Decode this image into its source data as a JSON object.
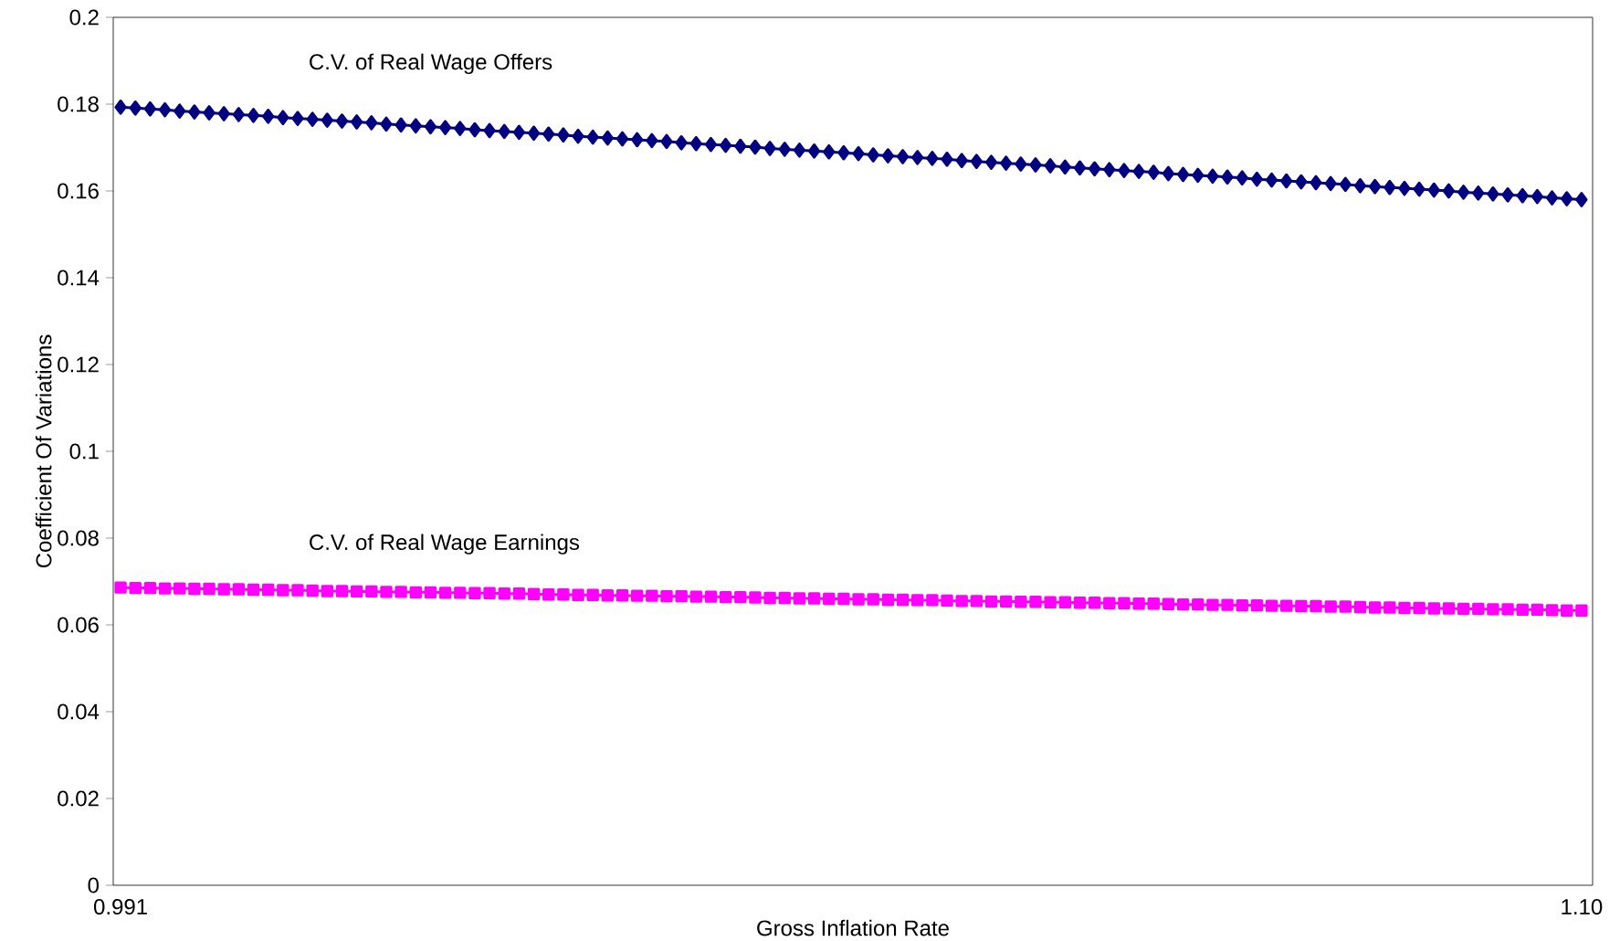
{
  "chart_data": {
    "type": "line",
    "xlabel": "Gross Inflation Rate",
    "ylabel": "Coefficient Of Variations",
    "categories": [
      "0.991",
      null,
      null,
      null,
      null,
      null,
      null,
      null,
      null,
      null,
      null,
      null,
      null,
      null,
      null,
      null,
      null,
      null,
      null,
      null,
      null,
      null,
      null,
      null,
      null,
      null,
      null,
      null,
      null,
      null,
      null,
      null,
      null,
      null,
      null,
      null,
      null,
      null,
      null,
      null,
      null,
      null,
      null,
      null,
      null,
      null,
      null,
      null,
      null,
      null,
      null,
      null,
      null,
      null,
      null,
      null,
      null,
      null,
      null,
      null,
      null,
      null,
      null,
      null,
      null,
      null,
      null,
      null,
      null,
      null,
      null,
      null,
      null,
      null,
      null,
      null,
      null,
      null,
      null,
      null,
      null,
      null,
      null,
      null,
      null,
      null,
      null,
      null,
      null,
      null,
      null,
      null,
      null,
      null,
      null,
      null,
      null,
      null,
      null,
      "1.10"
    ],
    "ylim": [
      0,
      0.2
    ],
    "yticks": [
      0,
      0.02,
      0.04,
      0.06,
      0.08,
      0.1,
      0.12,
      0.14,
      0.16,
      0.18,
      0.2
    ],
    "grid": false,
    "series": [
      {
        "name": "C.V. of Real Wage Offers",
        "color": "#000080",
        "marker": "diamond",
        "values": [
          0.1793,
          0.1791,
          0.1789,
          0.1787,
          0.1784,
          0.1782,
          0.178,
          0.1778,
          0.1776,
          0.1774,
          0.1772,
          0.1769,
          0.1767,
          0.1765,
          0.1763,
          0.1761,
          0.1759,
          0.1757,
          0.1754,
          0.1752,
          0.175,
          0.1748,
          0.1746,
          0.1744,
          0.1741,
          0.1739,
          0.1737,
          0.1735,
          0.1733,
          0.1731,
          0.1729,
          0.1726,
          0.1724,
          0.1722,
          0.172,
          0.1718,
          0.1716,
          0.1714,
          0.1711,
          0.1709,
          0.1707,
          0.1705,
          0.1703,
          0.1701,
          0.1698,
          0.1696,
          0.1694,
          0.1692,
          0.169,
          0.1688,
          0.1686,
          0.1683,
          0.1681,
          0.1679,
          0.1677,
          0.1675,
          0.1673,
          0.167,
          0.1668,
          0.1666,
          0.1664,
          0.1662,
          0.166,
          0.1658,
          0.1655,
          0.1653,
          0.1651,
          0.1649,
          0.1647,
          0.1645,
          0.1643,
          0.164,
          0.1638,
          0.1636,
          0.1634,
          0.1632,
          0.163,
          0.1627,
          0.1625,
          0.1623,
          0.1621,
          0.1619,
          0.1617,
          0.1615,
          0.1612,
          0.161,
          0.1608,
          0.1606,
          0.1604,
          0.1602,
          0.16,
          0.1597,
          0.1595,
          0.1593,
          0.1591,
          0.1589,
          0.1587,
          0.1584,
          0.1582,
          0.158
        ]
      },
      {
        "name": "C.V. of Real Wage Earnings",
        "color": "#ff00ff",
        "marker": "square",
        "values": [
          0.0686,
          0.0685,
          0.0685,
          0.0684,
          0.0684,
          0.0683,
          0.0683,
          0.0682,
          0.0682,
          0.0681,
          0.0681,
          0.068,
          0.068,
          0.0679,
          0.0678,
          0.0678,
          0.0677,
          0.0677,
          0.0676,
          0.0676,
          0.0675,
          0.0675,
          0.0674,
          0.0674,
          0.0673,
          0.0673,
          0.0672,
          0.0672,
          0.0671,
          0.067,
          0.067,
          0.0669,
          0.0669,
          0.0668,
          0.0668,
          0.0667,
          0.0667,
          0.0666,
          0.0666,
          0.0665,
          0.0665,
          0.0664,
          0.0664,
          0.0663,
          0.0662,
          0.0662,
          0.0661,
          0.0661,
          0.066,
          0.066,
          0.0659,
          0.0659,
          0.0658,
          0.0658,
          0.0657,
          0.0657,
          0.0656,
          0.0655,
          0.0655,
          0.0654,
          0.0654,
          0.0653,
          0.0653,
          0.0652,
          0.0652,
          0.0651,
          0.0651,
          0.065,
          0.065,
          0.0649,
          0.0649,
          0.0648,
          0.0647,
          0.0647,
          0.0646,
          0.0646,
          0.0645,
          0.0645,
          0.0644,
          0.0644,
          0.0643,
          0.0643,
          0.0642,
          0.0642,
          0.0641,
          0.064,
          0.064,
          0.0639,
          0.0639,
          0.0638,
          0.0638,
          0.0637,
          0.0637,
          0.0636,
          0.0636,
          0.0635,
          0.0635,
          0.0634,
          0.0633,
          0.0633
        ]
      }
    ]
  }
}
